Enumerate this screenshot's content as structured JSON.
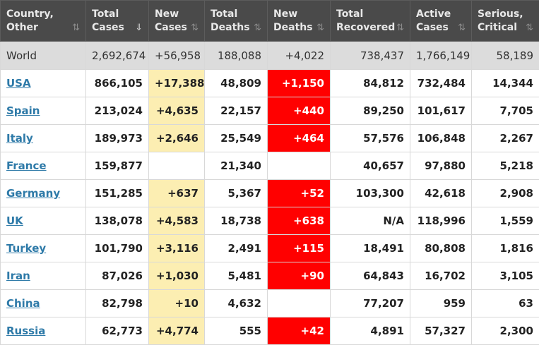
{
  "headers": [
    {
      "line1": "Country,",
      "line2": "Other",
      "sort": "⇅",
      "active": false
    },
    {
      "line1": "Total",
      "line2": "Cases",
      "sort": "⇓",
      "active": true
    },
    {
      "line1": "New",
      "line2": "Cases",
      "sort": "⇅",
      "active": false
    },
    {
      "line1": "Total",
      "line2": "Deaths",
      "sort": "⇅",
      "active": false
    },
    {
      "line1": "New",
      "line2": "Deaths",
      "sort": "⇅",
      "active": false
    },
    {
      "line1": "Total",
      "line2": "Recovered",
      "sort": "⇅",
      "active": false
    },
    {
      "line1": "Active",
      "line2": "Cases",
      "sort": "⇅",
      "active": false
    },
    {
      "line1": "Serious,",
      "line2": "Critical",
      "sort": "⇅",
      "active": false
    }
  ],
  "world": {
    "name": "World",
    "total_cases": "2,692,674",
    "new_cases": "+56,958",
    "total_deaths": "188,088",
    "new_deaths": "+4,022",
    "total_recovered": "738,437",
    "active_cases": "1,766,149",
    "serious_critical": "58,189"
  },
  "rows": [
    {
      "name": "USA",
      "total_cases": "866,105",
      "new_cases": "+17,388",
      "total_deaths": "48,809",
      "new_deaths": "+1,150",
      "total_recovered": "84,812",
      "active_cases": "732,484",
      "serious_critical": "14,344"
    },
    {
      "name": "Spain",
      "total_cases": "213,024",
      "new_cases": "+4,635",
      "total_deaths": "22,157",
      "new_deaths": "+440",
      "total_recovered": "89,250",
      "active_cases": "101,617",
      "serious_critical": "7,705"
    },
    {
      "name": "Italy",
      "total_cases": "189,973",
      "new_cases": "+2,646",
      "total_deaths": "25,549",
      "new_deaths": "+464",
      "total_recovered": "57,576",
      "active_cases": "106,848",
      "serious_critical": "2,267"
    },
    {
      "name": "France",
      "total_cases": "159,877",
      "new_cases": "",
      "total_deaths": "21,340",
      "new_deaths": "",
      "total_recovered": "40,657",
      "active_cases": "97,880",
      "serious_critical": "5,218"
    },
    {
      "name": "Germany",
      "total_cases": "151,285",
      "new_cases": "+637",
      "total_deaths": "5,367",
      "new_deaths": "+52",
      "total_recovered": "103,300",
      "active_cases": "42,618",
      "serious_critical": "2,908"
    },
    {
      "name": "UK",
      "total_cases": "138,078",
      "new_cases": "+4,583",
      "total_deaths": "18,738",
      "new_deaths": "+638",
      "total_recovered": "N/A",
      "active_cases": "118,996",
      "serious_critical": "1,559"
    },
    {
      "name": "Turkey",
      "total_cases": "101,790",
      "new_cases": "+3,116",
      "total_deaths": "2,491",
      "new_deaths": "+115",
      "total_recovered": "18,491",
      "active_cases": "80,808",
      "serious_critical": "1,816"
    },
    {
      "name": "Iran",
      "total_cases": "87,026",
      "new_cases": "+1,030",
      "total_deaths": "5,481",
      "new_deaths": "+90",
      "total_recovered": "64,843",
      "active_cases": "16,702",
      "serious_critical": "3,105"
    },
    {
      "name": "China",
      "total_cases": "82,798",
      "new_cases": "+10",
      "total_deaths": "4,632",
      "new_deaths": "",
      "total_recovered": "77,207",
      "active_cases": "959",
      "serious_critical": "63"
    },
    {
      "name": "Russia",
      "total_cases": "62,773",
      "new_cases": "+4,774",
      "total_deaths": "555",
      "new_deaths": "+42",
      "total_recovered": "4,891",
      "active_cases": "57,327",
      "serious_critical": "2,300"
    }
  ],
  "colors": {
    "header_bg": "#4a4a4a",
    "world_row_bg": "#dcdcdc",
    "new_cases_bg": "#fceeb2",
    "new_deaths_bg": "#ff0000",
    "link": "#2e7aa8"
  }
}
